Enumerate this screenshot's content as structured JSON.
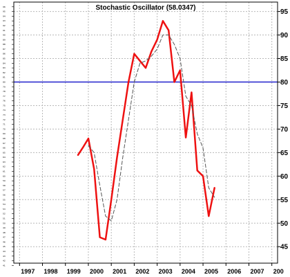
{
  "chart_data": {
    "type": "line",
    "title": "Stochastic Oscillator (58.0347)",
    "xlabel": "",
    "ylabel": "",
    "x_ticks": [
      "1997",
      "1998",
      "1999",
      "2000",
      "2001",
      "2002",
      "2003",
      "2004",
      "2005",
      "2006",
      "2007",
      "200"
    ],
    "y_ticks": [
      45,
      50,
      55,
      60,
      65,
      70,
      75,
      80,
      85,
      90,
      95
    ],
    "left_ticks": [
      96,
      95,
      94,
      93,
      92,
      91,
      90,
      89,
      88,
      87,
      86,
      85,
      84,
      83,
      82,
      81,
      80,
      79,
      78,
      77,
      76,
      75,
      74,
      73,
      72,
      71,
      70,
      69,
      68,
      67,
      66,
      65,
      64,
      63,
      62,
      61,
      60,
      59,
      58,
      57,
      56,
      55,
      54,
      53,
      52,
      51,
      50,
      49,
      48,
      47,
      46,
      45,
      44,
      43,
      42,
      41
    ],
    "ylim": [
      41.5,
      97
    ],
    "xlim": [
      1996.75,
      2008.25
    ],
    "grid": true,
    "reference_line": {
      "value": 80,
      "color": "#1010c8"
    },
    "series": [
      {
        "style": "solid",
        "color": "#ee1111",
        "points": [
          [
            1999.55,
            64.5
          ],
          [
            1999.75,
            66
          ],
          [
            2000.0,
            68
          ],
          [
            2000.25,
            61.5
          ],
          [
            2000.5,
            47
          ],
          [
            2000.75,
            46.5
          ],
          [
            2001.0,
            55
          ],
          [
            2001.25,
            64
          ],
          [
            2001.5,
            72
          ],
          [
            2001.75,
            80
          ],
          [
            2002.0,
            86
          ],
          [
            2002.25,
            84.5
          ],
          [
            2002.5,
            83
          ],
          [
            2002.75,
            86.5
          ],
          [
            2003.0,
            89
          ],
          [
            2003.25,
            93
          ],
          [
            2003.5,
            91
          ],
          [
            2003.75,
            80
          ],
          [
            2004.0,
            82.5
          ],
          [
            2004.25,
            68.2
          ],
          [
            2004.5,
            77.8
          ],
          [
            2004.75,
            61.2
          ],
          [
            2005.0,
            60
          ],
          [
            2005.25,
            51.5
          ],
          [
            2005.5,
            57.5
          ]
        ]
      },
      {
        "style": "dashed",
        "color": "#555555",
        "points": [
          [
            2000.0,
            66.5
          ],
          [
            2000.25,
            65
          ],
          [
            2000.5,
            58
          ],
          [
            2000.75,
            51.5
          ],
          [
            2001.0,
            50.5
          ],
          [
            2001.25,
            55
          ],
          [
            2001.5,
            64
          ],
          [
            2001.75,
            72
          ],
          [
            2002.0,
            80
          ],
          [
            2002.25,
            84
          ],
          [
            2002.5,
            84.5
          ],
          [
            2002.75,
            85.5
          ],
          [
            2003.0,
            87
          ],
          [
            2003.25,
            90
          ],
          [
            2003.5,
            90
          ],
          [
            2003.75,
            88
          ],
          [
            2004.0,
            85
          ],
          [
            2004.25,
            77
          ],
          [
            2004.5,
            75
          ],
          [
            2004.75,
            69
          ],
          [
            2005.0,
            66
          ],
          [
            2005.25,
            57.5
          ],
          [
            2005.5,
            55.5
          ]
        ]
      }
    ]
  },
  "colors": {
    "price_line": "#ee1111",
    "signal_line": "#555555",
    "reference_line": "#1010c8",
    "grid": "#b8b8b8",
    "background": "#ffffff"
  }
}
